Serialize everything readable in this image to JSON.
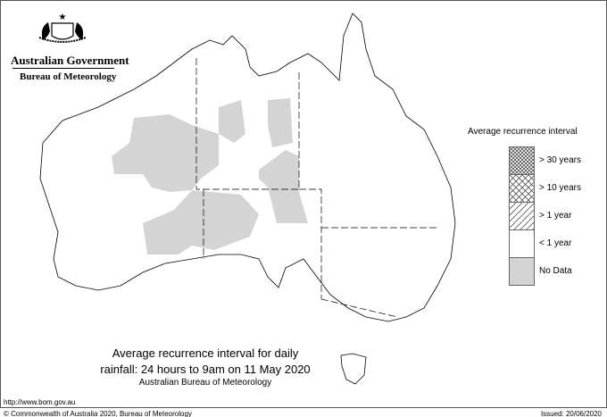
{
  "header": {
    "government": "Australian Government",
    "agency": "Bureau of Meteorology",
    "logo": "commonwealth-coat-of-arms"
  },
  "legend": {
    "title": "Average recurrence interval",
    "items": [
      {
        "label": "> 30 years",
        "pattern": "dense-crosshatch"
      },
      {
        "label": "> 10 years",
        "pattern": "crosshatch"
      },
      {
        "label": "> 1 year",
        "pattern": "diagonal-hatch"
      },
      {
        "label": "< 1 year",
        "pattern": "white"
      },
      {
        "label": "No Data",
        "pattern": "grey",
        "color": "#d4d4d4"
      }
    ]
  },
  "caption": {
    "line1": "Average recurrence interval for daily",
    "line2": "rainfall: 24 hours to 9am on 11 May 2020",
    "line3": "Australian Bureau of Meteorology"
  },
  "footer": {
    "url": "http://www.bom.gov.au",
    "copyright": "© Commonwealth of Australia 2020, Bureau of Meteorology",
    "issued": "Issued: 20/06/2020"
  }
}
